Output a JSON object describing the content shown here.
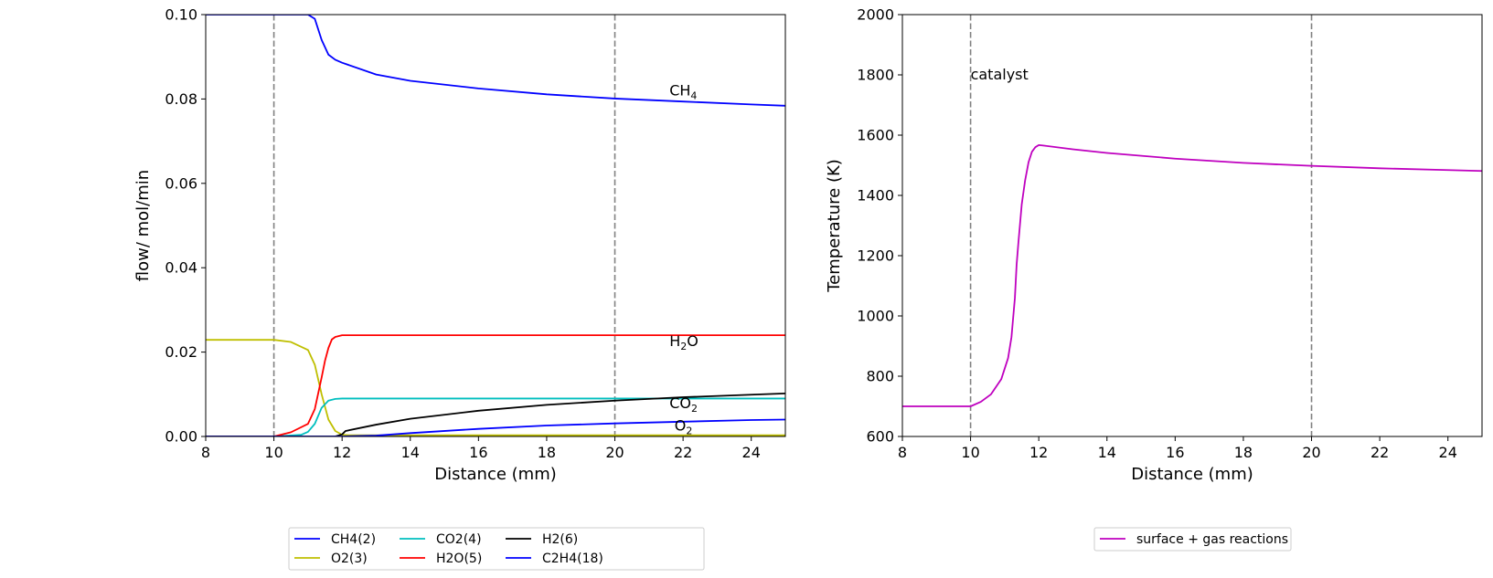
{
  "chart_data": [
    {
      "type": "line",
      "xlabel": "Distance (mm)",
      "ylabel": "flow/ mol/min",
      "xlim": [
        8,
        25
      ],
      "ylim": [
        0,
        0.1
      ],
      "xticks": [
        "8",
        "10",
        "12",
        "14",
        "16",
        "18",
        "20",
        "22",
        "24"
      ],
      "yticks": [
        "0.00",
        "0.02",
        "0.04",
        "0.06",
        "0.08",
        "0.10"
      ],
      "vlines": [
        10,
        20
      ],
      "grid": false,
      "legend_position": "below",
      "series": [
        {
          "name": "CH4(2)",
          "color": "#0000ff",
          "x": [
            8,
            10,
            11,
            11.2,
            11.4,
            11.6,
            11.8,
            12,
            13,
            14,
            16,
            18,
            20,
            22,
            24,
            25
          ],
          "y": [
            0.1,
            0.1,
            0.1,
            0.099,
            0.094,
            0.0905,
            0.0893,
            0.0886,
            0.0858,
            0.0843,
            0.0825,
            0.0811,
            0.0801,
            0.0794,
            0.0787,
            0.0784
          ]
        },
        {
          "name": "O2(3)",
          "color": "#bfbf00",
          "x": [
            8,
            10,
            10.5,
            11,
            11.2,
            11.4,
            11.6,
            11.8,
            12,
            12.2,
            14,
            25
          ],
          "y": [
            0.0229,
            0.0229,
            0.0224,
            0.0205,
            0.017,
            0.01,
            0.004,
            0.0013,
            0.0004,
            0.0003,
            0.0003,
            0.0003
          ]
        },
        {
          "name": "CO2(4)",
          "color": "#00bfbf",
          "x": [
            8,
            10,
            10.8,
            11,
            11.2,
            11.4,
            11.6,
            11.8,
            12,
            14,
            25
          ],
          "y": [
            0,
            0,
            0.0004,
            0.0011,
            0.003,
            0.0068,
            0.0085,
            0.0089,
            0.009,
            0.009,
            0.009
          ]
        },
        {
          "name": "H2O(5)",
          "color": "#ff0000",
          "x": [
            8,
            10,
            10.5,
            11,
            11.2,
            11.4,
            11.5,
            11.6,
            11.7,
            11.8,
            12,
            25
          ],
          "y": [
            0,
            0,
            0.001,
            0.003,
            0.0065,
            0.014,
            0.018,
            0.021,
            0.023,
            0.0236,
            0.024,
            0.024
          ]
        },
        {
          "name": "H2(6)",
          "color": "#000000",
          "x": [
            8,
            11.8,
            12,
            12.1,
            13,
            14,
            16,
            18,
            20,
            22,
            24,
            25
          ],
          "y": [
            0,
            0,
            0.0005,
            0.0013,
            0.0028,
            0.0042,
            0.0061,
            0.0075,
            0.0085,
            0.0093,
            0.0099,
            0.0102
          ]
        },
        {
          "name": "C2H4(18)",
          "color": "#0000ff",
          "x": [
            8,
            12,
            13,
            14,
            16,
            18,
            20,
            22,
            24,
            25
          ],
          "y": [
            0,
            0,
            0.0002,
            0.0008,
            0.0018,
            0.0026,
            0.0031,
            0.0035,
            0.0039,
            0.004
          ]
        }
      ],
      "annotations": [
        {
          "base": "CH",
          "sub": "4",
          "after": "",
          "x": 21.6,
          "y": 0.0808
        },
        {
          "base": "H",
          "sub": "2",
          "after": "O",
          "x": 21.6,
          "y": 0.0214
        },
        {
          "base": "CO",
          "sub": "2",
          "after": "",
          "x": 21.6,
          "y": 0.0067
        },
        {
          "base": "O",
          "sub": "2",
          "after": "",
          "x": 21.75,
          "y": 0.0014
        }
      ]
    },
    {
      "type": "line",
      "xlabel": "Distance (mm)",
      "ylabel": "Temperature (K)",
      "xlim": [
        8,
        25
      ],
      "ylim": [
        600,
        2000
      ],
      "xticks": [
        "8",
        "10",
        "12",
        "14",
        "16",
        "18",
        "20",
        "22",
        "24"
      ],
      "yticks": [
        "600",
        "800",
        "1000",
        "1200",
        "1400",
        "1600",
        "1800",
        "2000"
      ],
      "vlines": [
        10,
        20
      ],
      "grid": false,
      "legend_position": "below",
      "annotation_text": "catalyst",
      "annotation_x": 10,
      "annotation_y": 1800,
      "series": [
        {
          "name": "surface + gas reactions",
          "color": "#bf00bf",
          "x": [
            8,
            10,
            10.3,
            10.6,
            10.9,
            11.1,
            11.2,
            11.3,
            11.35,
            11.4,
            11.5,
            11.6,
            11.7,
            11.8,
            11.9,
            12,
            12.1,
            13,
            14,
            16,
            18,
            20,
            22,
            24,
            25
          ],
          "y": [
            700,
            700,
            715,
            740,
            790,
            860,
            930,
            1060,
            1170,
            1240,
            1370,
            1450,
            1510,
            1545,
            1560,
            1567,
            1566,
            1553,
            1541,
            1522,
            1508,
            1498,
            1490,
            1484,
            1481
          ]
        }
      ]
    }
  ]
}
